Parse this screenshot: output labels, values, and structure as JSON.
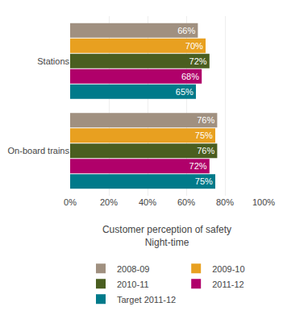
{
  "chart_data": {
    "type": "bar",
    "orientation": "horizontal",
    "xlabel": "Customer perception of safety\nNight-time",
    "categories": [
      "Stations",
      "On-board trains"
    ],
    "series": [
      {
        "name": "2008-09",
        "color": "#a09080",
        "values": [
          66,
          76
        ],
        "value_labels": [
          "66%",
          "76%"
        ]
      },
      {
        "name": "2009-10",
        "color": "#e8a020",
        "values": [
          70,
          75
        ],
        "value_labels": [
          "70%",
          "75%"
        ]
      },
      {
        "name": "2010-11",
        "color": "#4a5e20",
        "values": [
          72,
          76
        ],
        "value_labels": [
          "72%",
          "76%"
        ]
      },
      {
        "name": "2011-12",
        "color": "#b0006a",
        "values": [
          68,
          72
        ],
        "value_labels": [
          "68%",
          "72%"
        ]
      },
      {
        "name": "Target 2011-12",
        "color": "#007a8a",
        "values": [
          65,
          75
        ],
        "value_labels": [
          "65%",
          "75%"
        ]
      }
    ],
    "xlim": [
      0,
      100
    ],
    "xticks": [
      {
        "value": 0,
        "label": "0%"
      },
      {
        "value": 20,
        "label": "20%"
      },
      {
        "value": 40,
        "label": "40%"
      },
      {
        "value": 60,
        "label": "60%"
      },
      {
        "value": 80,
        "label": "80%"
      },
      {
        "value": 100,
        "label": "100%"
      }
    ],
    "grid": true,
    "data_labels": true,
    "legend": "bottom"
  }
}
